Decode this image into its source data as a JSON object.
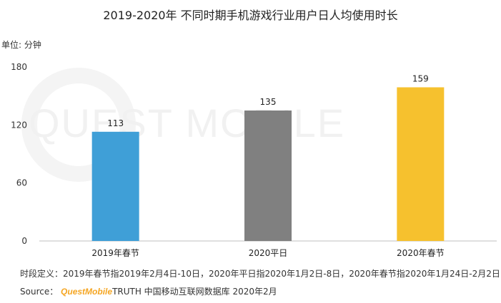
{
  "chart_data": {
    "type": "bar",
    "title": "2019-2020年 不同时期手机游戏行业用户日人均使用时长",
    "unit_label": "单位: 分钟",
    "categories": [
      "2019年春节",
      "2020平日",
      "2020年春节"
    ],
    "values": [
      113,
      135,
      159
    ],
    "bar_colors": [
      "#3f9fd7",
      "#808080",
      "#f6c12e"
    ],
    "yticks": [
      0,
      60,
      120,
      180
    ],
    "ylim": [
      0,
      180
    ],
    "xlabel": "",
    "ylabel": "",
    "grid": false
  },
  "watermark": "QUEST MOBILE",
  "footnote": "时段定义：2019年春节指2019年2月4日-10日，2020年平日指2020年1月2日-8日，2020年春节指2020年1月24日-2月2日",
  "source": {
    "label": "Source：",
    "brand": "QuestMobile",
    "text": "TRUTH 中国移动互联网数据库 2020年2月"
  }
}
